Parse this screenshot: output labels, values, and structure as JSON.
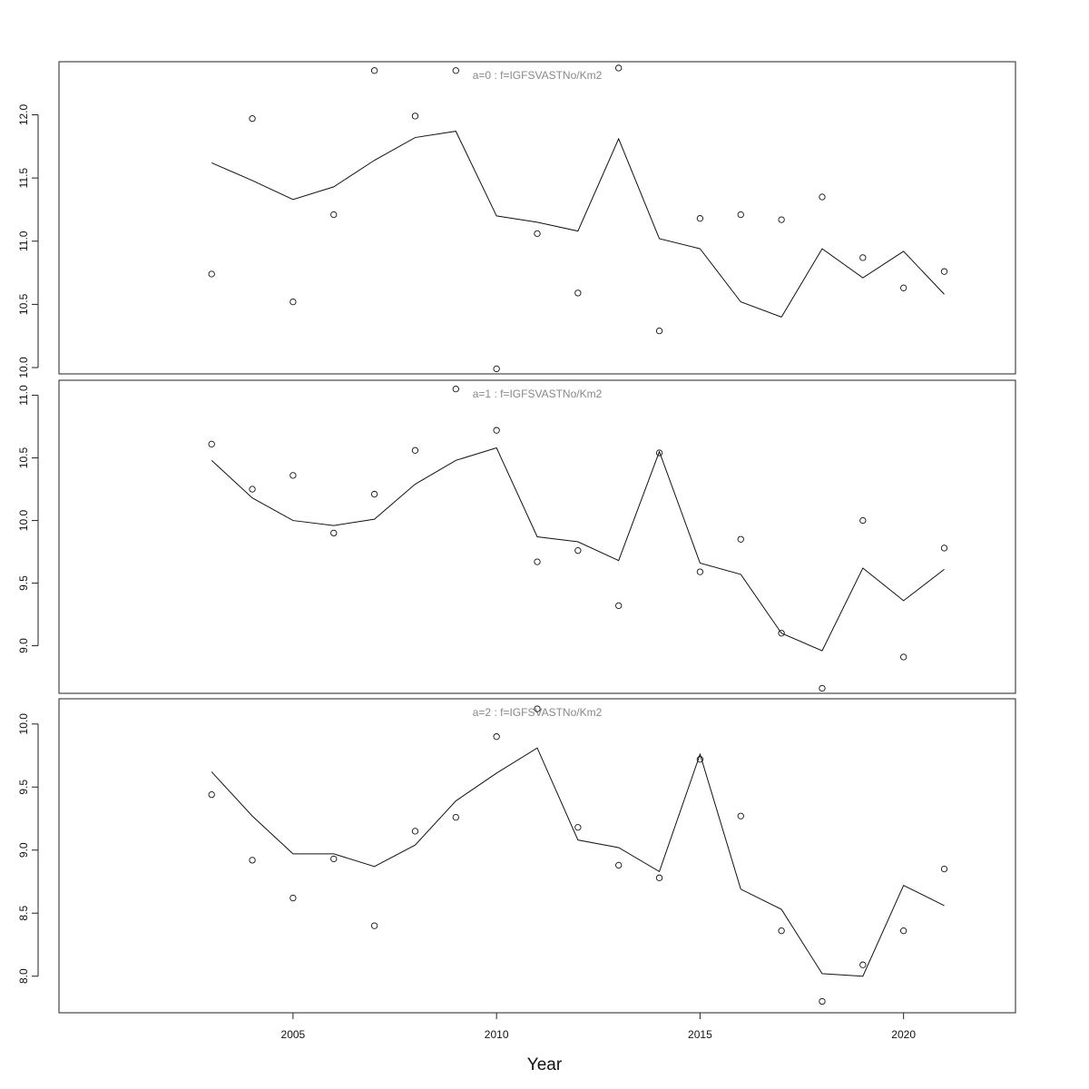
{
  "chart_data": [
    {
      "type": "line",
      "title": "a=0  :  f=IGFSVASTNo/Km2",
      "xlabel": "",
      "ylabel": "",
      "ylim": [
        9.95,
        12.42
      ],
      "yticks": [
        10.0,
        10.5,
        11.0,
        11.5,
        12.0
      ],
      "ytick_labels": [
        "10.0",
        "10.5",
        "11.0",
        "11.5",
        "12.0"
      ],
      "x": [
        2003,
        2004,
        2005,
        2006,
        2007,
        2008,
        2009,
        2010,
        2011,
        2012,
        2013,
        2014,
        2015,
        2016,
        2017,
        2018,
        2019,
        2020,
        2021
      ],
      "series": [
        {
          "style": "line",
          "values": [
            11.62,
            11.48,
            11.33,
            11.43,
            11.64,
            11.82,
            11.87,
            11.2,
            11.15,
            11.08,
            11.81,
            11.02,
            10.94,
            10.52,
            10.4,
            10.94,
            10.71,
            10.92,
            10.58
          ]
        },
        {
          "style": "points",
          "values": [
            10.74,
            11.97,
            10.52,
            11.21,
            12.35,
            11.99,
            12.35,
            9.99,
            11.06,
            10.59,
            12.37,
            10.29,
            11.18,
            11.21,
            11.17,
            11.35,
            10.87,
            10.63,
            10.76
          ]
        }
      ]
    },
    {
      "type": "line",
      "title": "a=1  :  f=IGFSVASTNo/Km2",
      "xlabel": "",
      "ylabel": "",
      "ylim": [
        8.62,
        11.12
      ],
      "yticks": [
        9.0,
        9.5,
        10.0,
        10.5,
        11.0
      ],
      "ytick_labels": [
        "9.0",
        "9.5",
        "10.0",
        "10.5",
        "11.0"
      ],
      "x": [
        2003,
        2004,
        2005,
        2006,
        2007,
        2008,
        2009,
        2010,
        2011,
        2012,
        2013,
        2014,
        2015,
        2016,
        2017,
        2018,
        2019,
        2020,
        2021
      ],
      "series": [
        {
          "style": "line",
          "values": [
            10.48,
            10.18,
            10.0,
            9.96,
            10.01,
            10.29,
            10.48,
            10.58,
            9.87,
            9.83,
            9.68,
            10.55,
            9.66,
            9.57,
            9.1,
            8.96,
            9.62,
            9.36,
            9.61
          ]
        },
        {
          "style": "points",
          "values": [
            10.61,
            10.25,
            10.36,
            9.9,
            10.21,
            10.56,
            11.05,
            10.72,
            9.67,
            9.76,
            9.32,
            10.54,
            9.59,
            9.85,
            9.1,
            8.66,
            10.0,
            8.91,
            9.78
          ]
        }
      ]
    },
    {
      "type": "line",
      "title": "a=2  :  f=IGFSVASTNo/Km2",
      "xlabel": "Year",
      "ylabel": "",
      "ylim": [
        7.71,
        10.2
      ],
      "yticks": [
        8.0,
        8.5,
        9.0,
        9.5,
        10.0
      ],
      "ytick_labels": [
        "8.0",
        "8.5",
        "9.0",
        "9.5",
        "10.0"
      ],
      "xlim": [
        1999.25,
        2022.75
      ],
      "xticks": [
        2005,
        2010,
        2015,
        2020
      ],
      "xtick_labels": [
        "2005",
        "2010",
        "2015",
        "2020"
      ],
      "x": [
        2003,
        2004,
        2005,
        2006,
        2007,
        2008,
        2009,
        2010,
        2011,
        2012,
        2013,
        2014,
        2015,
        2016,
        2017,
        2018,
        2019,
        2020,
        2021
      ],
      "series": [
        {
          "style": "line",
          "values": [
            9.62,
            9.27,
            8.97,
            8.97,
            8.87,
            9.04,
            9.39,
            9.61,
            9.81,
            9.08,
            9.02,
            8.83,
            9.76,
            8.69,
            8.53,
            8.02,
            8.0,
            8.72,
            8.56
          ]
        },
        {
          "style": "points",
          "values": [
            9.44,
            8.92,
            8.62,
            8.93,
            8.4,
            9.15,
            9.26,
            9.9,
            10.12,
            9.18,
            8.88,
            8.78,
            9.72,
            9.27,
            8.36,
            7.8,
            8.09,
            8.36,
            8.85
          ]
        }
      ]
    }
  ]
}
